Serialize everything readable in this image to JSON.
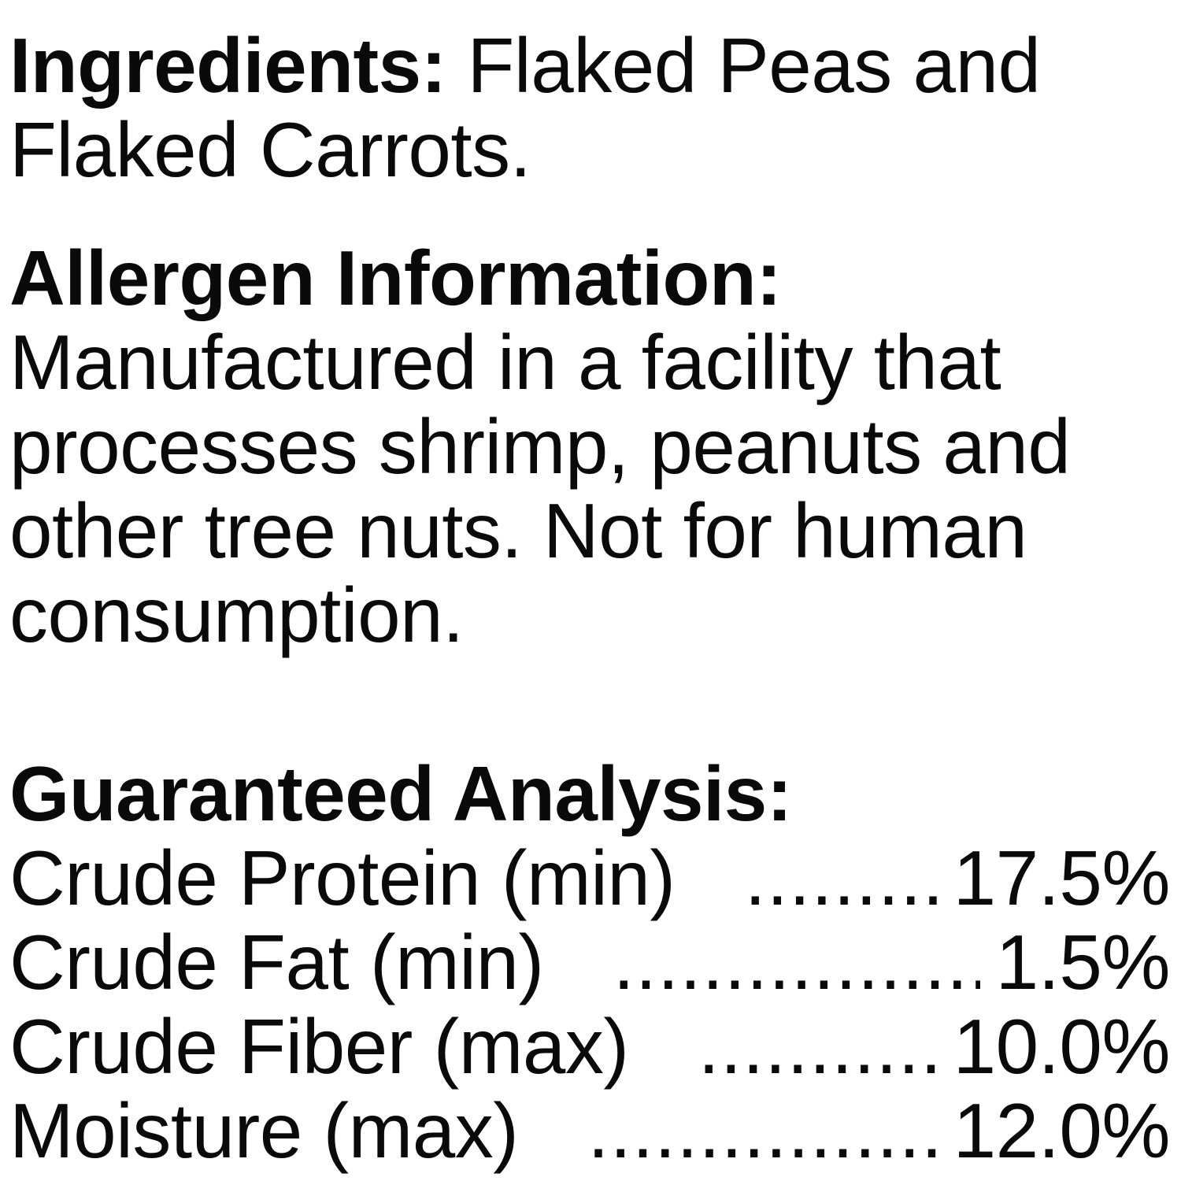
{
  "colors": {
    "text": "#0a0a0a",
    "background": "#ffffff"
  },
  "ingredients": {
    "heading": "Ingredients:",
    "line1_rest": " Flaked Peas and",
    "line2": "Flaked Carrots."
  },
  "allergen": {
    "heading": "Allergen Information:",
    "line1": "Manufactured in a facility that",
    "line2": "processes shrimp, peanuts and",
    "line3": "other tree nuts. Not for human",
    "line4": "consumption."
  },
  "analysis": {
    "heading": "Guaranteed Analysis:",
    "rows": [
      {
        "label": "Crude Protein (min)",
        "dots": "...........",
        "value": "17.5%"
      },
      {
        "label": "Crude Fat (min)",
        "dots": "..................",
        "value": "1.5%"
      },
      {
        "label": "Crude Fiber (max)",
        "dots": ".............",
        "value": "10.0%"
      },
      {
        "label": "Moisture (max)",
        "dots": ".................",
        "value": "12.0%"
      }
    ]
  }
}
